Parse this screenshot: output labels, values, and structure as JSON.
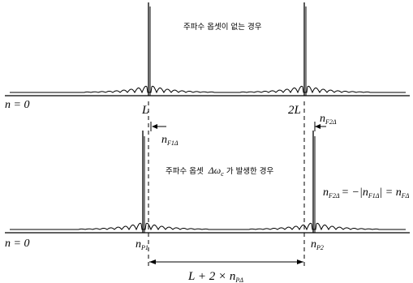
{
  "top_panel": {
    "caption": "주파수 옵셋이 없는 경우",
    "origin_label": "n = 0",
    "peak1_label": "L",
    "peak2_label": "2L"
  },
  "bottom_panel": {
    "caption_prefix": "주파수 옵셋",
    "caption_symbol": "Δω",
    "caption_subscript": "c",
    "caption_suffix": "가 발생한 경우",
    "origin_label": "n = 0",
    "offset1_label": "n",
    "offset1_sub": "F1Δ",
    "offset2_label": "n",
    "offset2_sub": "F2Δ",
    "peak1_label": "n",
    "peak1_sub": "P1",
    "peak2_label": "n",
    "peak2_sub": "P2",
    "equation": {
      "lhs": "n",
      "lhs_sub": "F2Δ",
      "mid": "= −|n",
      "mid_sub": "F1Δ",
      "mid_close": "| = n",
      "rhs_sub": "FΔ"
    },
    "distance": {
      "label": "L + 2 × n",
      "sub": "PΔ"
    }
  }
}
